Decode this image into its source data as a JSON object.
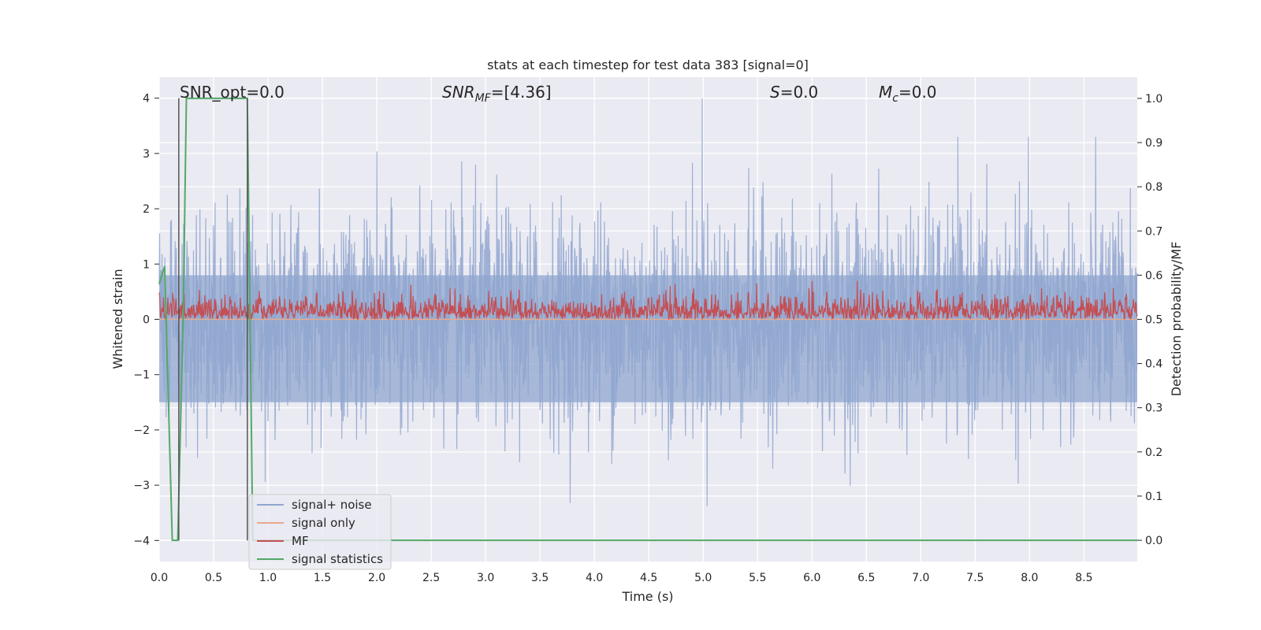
{
  "chart_data": {
    "type": "line",
    "title": "stats at each timestep for test data 383 [signal=0]",
    "xlabel": "Time (s)",
    "ylabel_left": "Whitened strain",
    "ylabel_right": "Detection probability/MF",
    "xlim": [
      0.0,
      8.99
    ],
    "ylim_left": [
      -4.38,
      4.38
    ],
    "ylim_right": [
      -0.048,
      1.048
    ],
    "x_ticks": [
      "0.0",
      "0.5",
      "1.0",
      "1.5",
      "2.0",
      "2.5",
      "3.0",
      "3.5",
      "4.0",
      "4.5",
      "5.0",
      "5.5",
      "6.0",
      "6.5",
      "7.0",
      "7.5",
      "8.0",
      "8.5"
    ],
    "y_ticks_left": [
      "−4",
      "−3",
      "−2",
      "−1",
      "0",
      "1",
      "2",
      "3",
      "4"
    ],
    "y_ticks_right": [
      "0.0",
      "0.1",
      "0.2",
      "0.3",
      "0.4",
      "0.5",
      "0.6",
      "0.7",
      "0.8",
      "0.9",
      "1.0"
    ],
    "grid": true,
    "legend_position": "lower-left",
    "annotations": {
      "snr_opt": "SNR_opt=0.0",
      "snr_mf_sym": "SNR",
      "snr_mf_sub": "MF",
      "snr_mf_val": "=[4.36]",
      "s_sym": "S",
      "s_val": "=0.0",
      "mc_sym": "M",
      "mc_sub": "c",
      "mc_val": "=0.0"
    },
    "vertical_markers_s": [
      0.18,
      0.81
    ],
    "series": [
      {
        "name": "signal+ noise",
        "axis": "left",
        "color": "#8fa5cf",
        "description_values": {
          "envelope_typical": 1.6,
          "peak_max": 4.0,
          "peak_time": 4.99,
          "min": -3.55
        }
      },
      {
        "name": "signal only",
        "axis": "left",
        "color": "#e8a98e",
        "x": [
          0.0,
          8.99
        ],
        "y": [
          0.0,
          0.0
        ]
      },
      {
        "name": "MF",
        "axis": "right",
        "color": "#c44e52",
        "description_values": {
          "baseline": 0.5,
          "typical_peak": 0.57,
          "max": 0.62
        }
      },
      {
        "name": "signal statistics",
        "axis": "right",
        "color": "#55a868",
        "x": [
          0.0,
          0.05,
          0.12,
          0.17,
          0.22,
          0.25,
          0.81,
          0.86,
          8.99
        ],
        "y": [
          0.58,
          0.62,
          0.0,
          0.0,
          0.5,
          1.0,
          1.0,
          0.0,
          0.0
        ]
      }
    ]
  },
  "colors": {
    "axes_bg": "#eaeaf2",
    "grid": "#ffffff",
    "text": "#262626"
  }
}
